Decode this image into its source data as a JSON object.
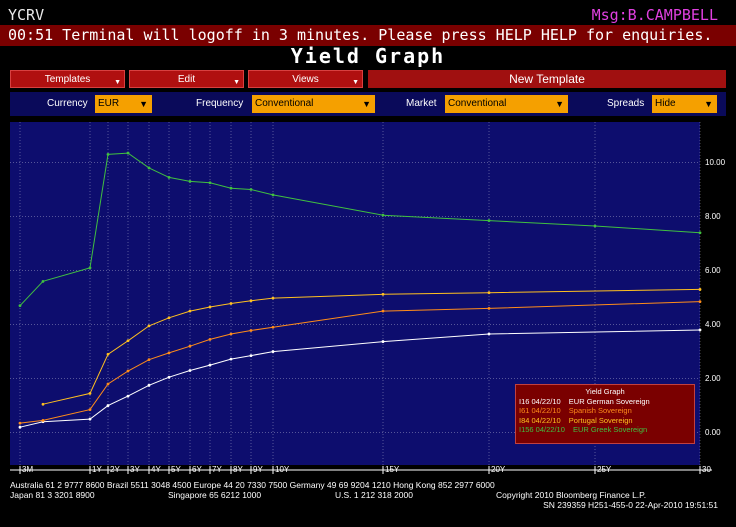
{
  "header": {
    "function": "YCRV",
    "message": "Msg:B.CAMPBELL",
    "warning": "00:51 Terminal will logoff in 3 minutes. Please press HELP HELP for enquiries.",
    "title": "Yield Graph"
  },
  "menus": {
    "templates": "Templates",
    "edit": "Edit",
    "views": "Views",
    "new_template": "New Template"
  },
  "filters": {
    "currency_label": "Currency",
    "currency_value": "EUR",
    "frequency_label": "Frequency",
    "frequency_value": "Conventional",
    "market_label": "Market",
    "market_value": "Conventional",
    "spreads_label": "Spreads",
    "spreads_value": "Hide"
  },
  "colors": {
    "german": "#ffffff",
    "spanish": "#ff8c1a",
    "portugal": "#ffc020",
    "greek": "#40c040",
    "plot_bg": "#0d0d6e",
    "grid": "#ffffff"
  },
  "chart_data": {
    "type": "line",
    "title": "Yield Graph",
    "xlabel": "",
    "ylabel": "",
    "x_tick_labels": [
      "3M",
      "1Y",
      "2Y",
      "3Y",
      "4Y",
      "5Y",
      "6Y",
      "7Y",
      "8Y",
      "9Y",
      "10Y",
      "15Y",
      "20Y",
      "25Y",
      "30"
    ],
    "x_tick_years": [
      0.25,
      1,
      2,
      3,
      4,
      5,
      6,
      7,
      8,
      9,
      10,
      15,
      20,
      25,
      30
    ],
    "y_tick_labels": [
      "0.00",
      "2.00",
      "4.00",
      "6.00",
      "8.00",
      "10.00"
    ],
    "ylim": [
      -1.2,
      11.5
    ],
    "legend_title": "Yield Graph",
    "legend_position": "bottom-right",
    "series": [
      {
        "name": "I16 04/22/10 EUR German Sovereign",
        "label_id": "I16 04/22/10",
        "label_name": "EUR German Sovereign",
        "color": "#ffffff",
        "x": [
          0.25,
          0.5,
          1,
          2,
          3,
          4,
          5,
          6,
          7,
          8,
          9,
          10,
          15,
          20,
          30
        ],
        "y": [
          0.2,
          0.4,
          0.5,
          1.0,
          1.35,
          1.75,
          2.05,
          2.3,
          2.5,
          2.72,
          2.85,
          3.0,
          3.37,
          3.65,
          3.8
        ]
      },
      {
        "name": "I61 04/22/10 Spanish Sovereign",
        "label_id": "I61 04/22/10",
        "label_name": "Spanish Sovereign",
        "color": "#ff8c1a",
        "x": [
          0.25,
          0.5,
          1,
          2,
          3,
          4,
          5,
          6,
          7,
          8,
          9,
          10,
          15,
          20,
          30
        ],
        "y": [
          0.35,
          0.45,
          0.85,
          1.8,
          2.28,
          2.7,
          2.95,
          3.2,
          3.45,
          3.65,
          3.78,
          3.9,
          4.5,
          4.6,
          4.85
        ]
      },
      {
        "name": "I84 04/22/10 Portugal Sovereign",
        "label_id": "I84 04/22/10",
        "label_name": "Portugal Sovereign",
        "color": "#ffc020",
        "x": [
          0.5,
          1,
          2,
          3,
          4,
          5,
          6,
          7,
          8,
          9,
          10,
          15,
          20,
          30
        ],
        "y": [
          1.05,
          1.45,
          2.9,
          3.4,
          3.95,
          4.25,
          4.5,
          4.65,
          4.78,
          4.88,
          4.98,
          5.12,
          5.18,
          5.3
        ]
      },
      {
        "name": "I156 04/22/10 EUR Greek Sovereign",
        "label_id": "I156 04/22/10",
        "label_name": "EUR Greek Sovereign",
        "color": "#40c040",
        "x": [
          0.25,
          0.5,
          1,
          2,
          3,
          4,
          5,
          6,
          7,
          8,
          9,
          10,
          15,
          20,
          25,
          30
        ],
        "y": [
          4.7,
          5.6,
          6.1,
          10.3,
          10.35,
          9.8,
          9.45,
          9.3,
          9.25,
          9.05,
          9.0,
          8.8,
          8.05,
          7.85,
          7.65,
          7.4
        ]
      }
    ]
  },
  "footer": {
    "line1": "Australia 61 2 9777 8600 Brazil 5511 3048 4500 Europe 44 20 7330 7500 Germany 49 69 9204 1210 Hong Kong 852 2977 6000",
    "line2a": "Japan 81 3 3201 8900",
    "line2b": "Singapore 65 6212 1000",
    "line2c": "U.S. 1 212 318 2000",
    "line2d": "Copyright 2010 Bloomberg Finance L.P.",
    "line3": "SN 239359 H251-455-0 22-Apr-2010 19:51:51"
  }
}
